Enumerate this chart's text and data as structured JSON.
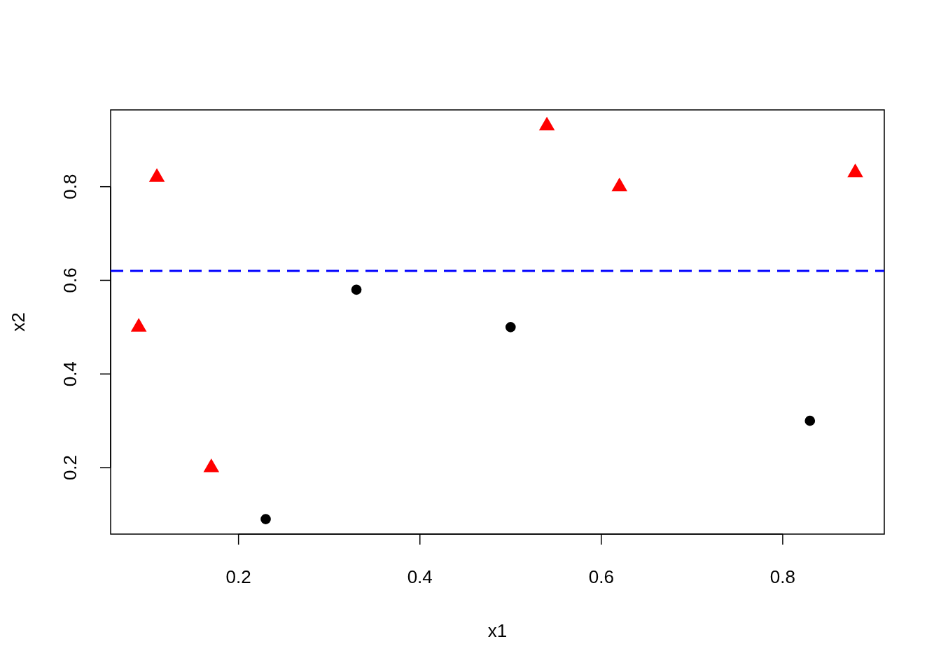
{
  "chart_data": {
    "type": "scatter",
    "xlabel": "x1",
    "ylabel": "x2",
    "xlim": [
      0.059,
      0.912
    ],
    "ylim": [
      0.058,
      0.964
    ],
    "xticks": [
      0.2,
      0.4,
      0.6,
      0.8
    ],
    "yticks": [
      0.2,
      0.4,
      0.6,
      0.8
    ],
    "series": [
      {
        "color": "#000000",
        "marker": "circle",
        "x": [
          0.23,
          0.33,
          0.5,
          0.83
        ],
        "values": [
          0.09,
          0.58,
          0.5,
          0.3
        ]
      },
      {
        "color": "#ff0000",
        "marker": "triangle",
        "x": [
          0.09,
          0.11,
          0.17,
          0.54,
          0.62,
          0.88
        ],
        "values": [
          0.5,
          0.82,
          0.2,
          0.93,
          0.8,
          0.83
        ]
      }
    ],
    "ref_lines": [
      {
        "axis": "y",
        "value": 0.62,
        "color": "#0000ff",
        "line_style": "dashed"
      }
    ]
  }
}
